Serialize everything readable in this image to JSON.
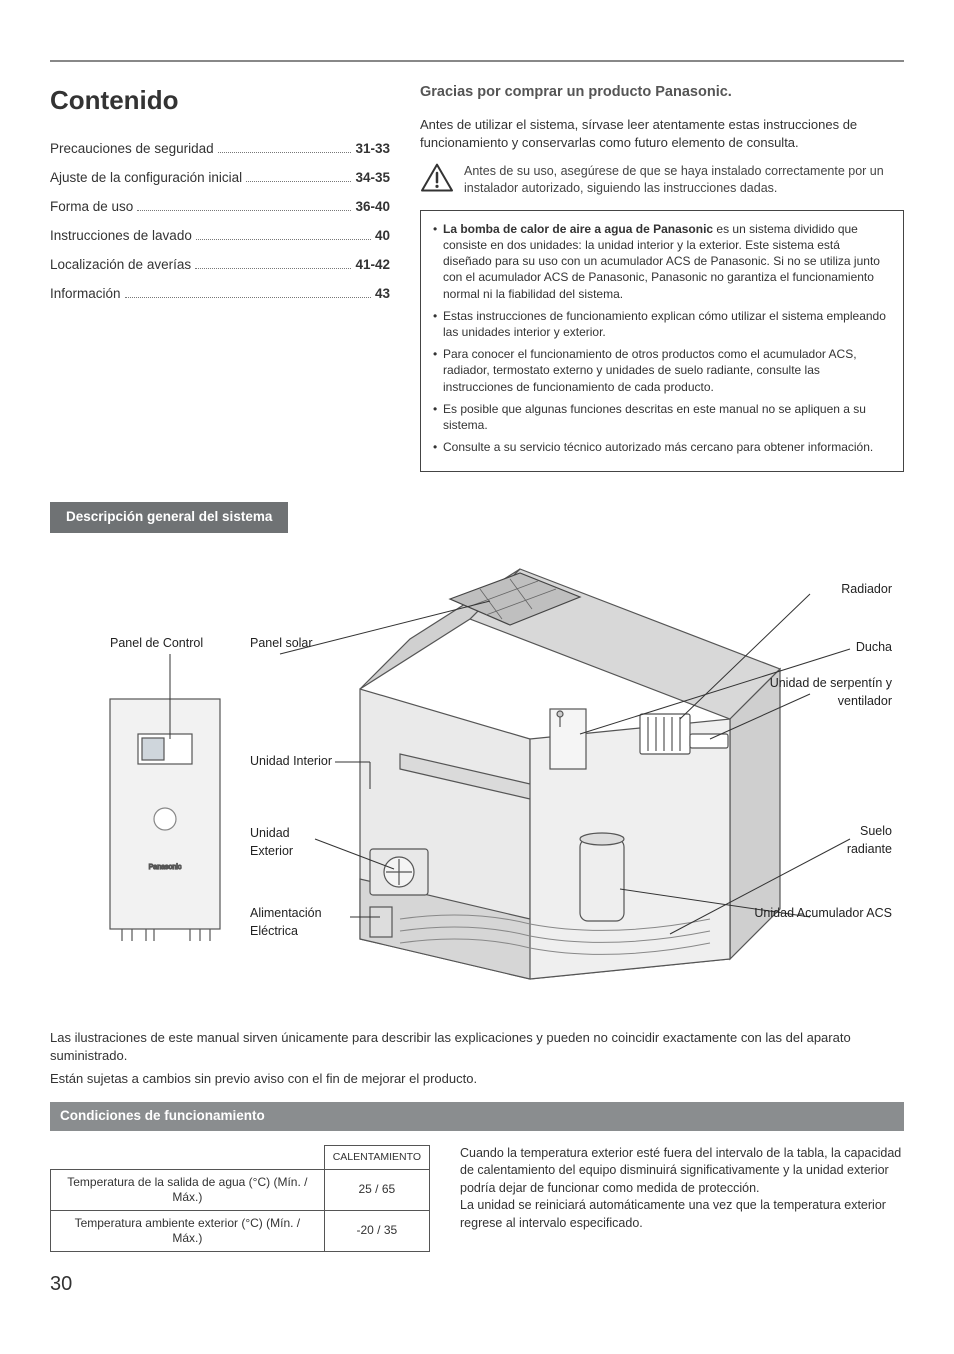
{
  "page_number": "30",
  "colors": {
    "rule": "#888888",
    "tab_bg": "#6f7274",
    "bar_bg": "#8a8d8f",
    "text": "#333333",
    "box_border": "#444444",
    "table_border": "#555555",
    "diagram_stroke": "#555555",
    "diagram_fill_panel": "#e8e8e8",
    "diagram_fill_house": "#dcdcdc"
  },
  "contenido": {
    "heading": "Contenido",
    "items": [
      {
        "label": "Precauciones de seguridad",
        "page": "31-33"
      },
      {
        "label": "Ajuste de la configuración inicial",
        "page": "34-35"
      },
      {
        "label": "Forma de uso",
        "page": "36-40"
      },
      {
        "label": "Instrucciones de lavado",
        "page": "40"
      },
      {
        "label": "Localización de averías",
        "page": "41-42"
      },
      {
        "label": "Información",
        "page": "43"
      }
    ]
  },
  "thanks": "Gracias por comprar un producto Panasonic.",
  "intro": "Antes de utilizar el sistema, sírvase leer atentamente estas instrucciones de funcionamiento y conservarlas como futuro elemento de consulta.",
  "warn_text": "Antes de su uso, asegúrese de que se haya instalado correctamente por un instalador autorizado, siguiendo las instrucciones dadas.",
  "info_bullets": [
    {
      "bold": "La bomba de calor de aire a agua de Panasonic",
      "rest": " es un sistema dividido que consiste en dos unidades: la unidad interior y la exterior.  Este sistema está diseñado para su uso con un acumulador ACS de Panasonic. Si no se utiliza junto con el acumulador ACS de Panasonic, Panasonic no garantiza el funcionamiento normal ni la fiabilidad del sistema."
    },
    {
      "bold": "",
      "rest": "Estas instrucciones de funcionamiento explican cómo utilizar el sistema empleando las unidades interior y exterior."
    },
    {
      "bold": "",
      "rest": "Para conocer el funcionamiento de otros productos como el acumulador ACS, radiador, termostato externo y unidades de suelo radiante, consulte las instrucciones de funcionamiento de cada producto."
    },
    {
      "bold": "",
      "rest": "Es posible que algunas funciones descritas en este manual no se apliquen a su sistema."
    },
    {
      "bold": "",
      "rest": "Consulte a su servicio técnico autorizado más cercano para obtener información."
    }
  ],
  "system_overview": {
    "tab": "Descripción general del sistema",
    "labels": {
      "panel_control": "Panel de Control",
      "panel_solar": "Panel solar",
      "unidad_interior": "Unidad Interior",
      "unidad_exterior": "Unidad Exterior",
      "alimentacion": "Alimentación Eléctrica",
      "radiador": "Radiador",
      "ducha": "Ducha",
      "serpentin": "Unidad de serpentín y ventilador",
      "suelo": "Suelo radiante",
      "acumulador": "Unidad Acumulador ACS"
    },
    "brand": "Panasonic"
  },
  "illustration_note_1": "Las ilustraciones de este manual sirven únicamente para describir las explicaciones y pueden no coincidir exactamente con las del aparato suministrado.",
  "illustration_note_2": "Están sujetas a cambios sin previo aviso con el fin de mejorar el producto.",
  "conditions": {
    "bar": "Condiciones de funcionamiento",
    "table": {
      "header": "CALENTAMIENTO",
      "rows": [
        {
          "label": "Temperatura de la salida de agua (°C) (Mín. / Máx.)",
          "value": "25 / 65"
        },
        {
          "label": "Temperatura ambiente exterior (°C) (Mín. / Máx.)",
          "value": "-20 / 35"
        }
      ]
    },
    "text_1": "Cuando la temperatura exterior esté fuera del intervalo de la tabla, la capacidad de calentamiento del equipo disminuirá significativamente y la unidad exterior podría dejar de funcionar como medida de protección.",
    "text_2": "La unidad se reiniciará automáticamente una vez que la temperatura exterior regrese al intervalo especificado."
  }
}
